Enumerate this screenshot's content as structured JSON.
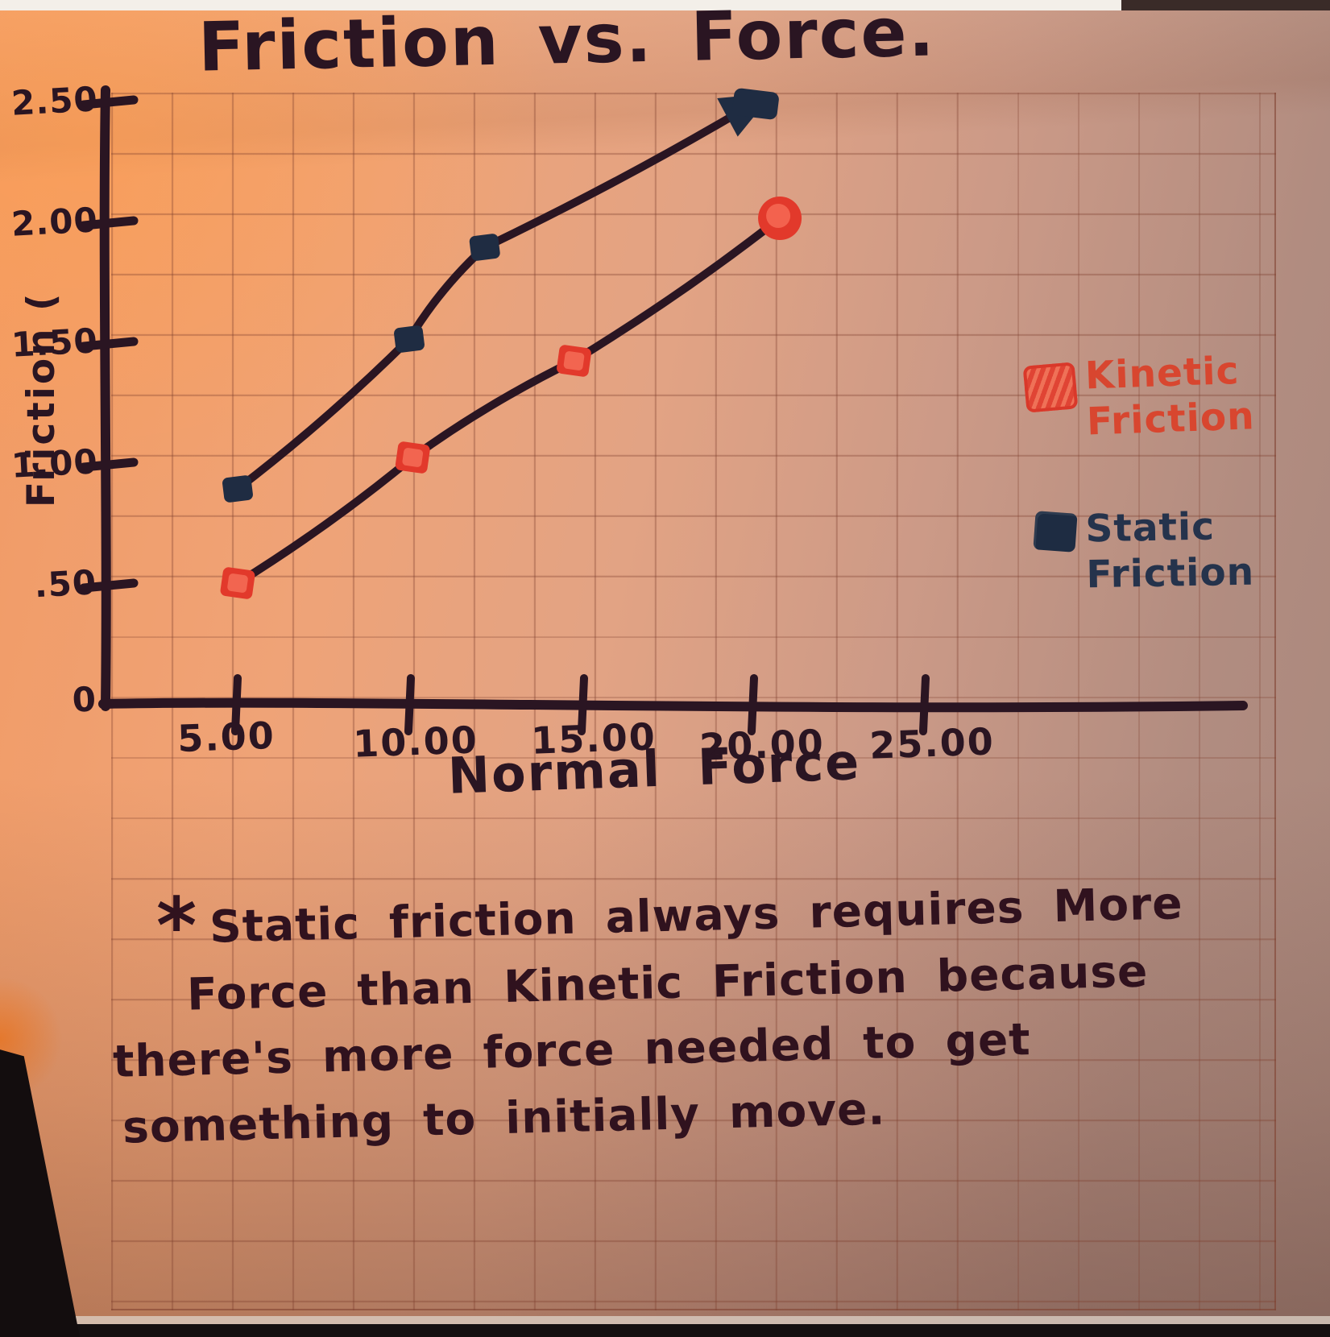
{
  "title": "Friction vs. Force.",
  "chart_data": {
    "type": "line",
    "title": "Friction vs. Force.",
    "xlabel": "Normal Force",
    "ylabel": "Friction (",
    "x_ticks": [
      "5.00",
      "10.00",
      "15.00",
      "20.00",
      "25.00"
    ],
    "x_tick_values": [
      5,
      10,
      15,
      20,
      25
    ],
    "y_ticks": [
      "2.50",
      "2.00",
      "1.50",
      "1.00",
      ".50",
      "0"
    ],
    "y_tick_values": [
      2.5,
      2.0,
      1.5,
      1.0,
      0.5,
      0
    ],
    "xlim": [
      0,
      27.5
    ],
    "ylim": [
      0,
      2.6
    ],
    "grid": true,
    "legend_position": "right",
    "series": [
      {
        "name": "Static Friction",
        "marker": "square",
        "marker_color": "#1f2c42",
        "line_color": "#2a1522",
        "arrow_end": true,
        "points": [
          [
            5.0,
            0.9
          ],
          [
            10.0,
            1.52
          ],
          [
            12.2,
            1.9
          ],
          [
            20.1,
            2.5
          ]
        ]
      },
      {
        "name": "Kinetic Friction",
        "marker": "square",
        "marker_color": "#e2392b",
        "line_color": "#2a1522",
        "arrow_end": false,
        "points": [
          [
            5.0,
            0.51
          ],
          [
            10.1,
            1.03
          ],
          [
            14.8,
            1.43
          ],
          [
            20.8,
            2.02
          ]
        ]
      }
    ]
  },
  "legend": {
    "items": [
      {
        "label": "Kinetic Friction",
        "color": "#d8462f"
      },
      {
        "label": "Static Friction",
        "color": "#25334c"
      }
    ]
  },
  "note": {
    "marker": "*",
    "lines": [
      "Static friction always requires More",
      "Force than Kinetic Friction because",
      "there's more force needed to get",
      "something to initially move."
    ]
  },
  "colors": {
    "ink": "#2a1522",
    "kinetic_red": "#e2392b",
    "static_navy": "#1f2c42"
  }
}
